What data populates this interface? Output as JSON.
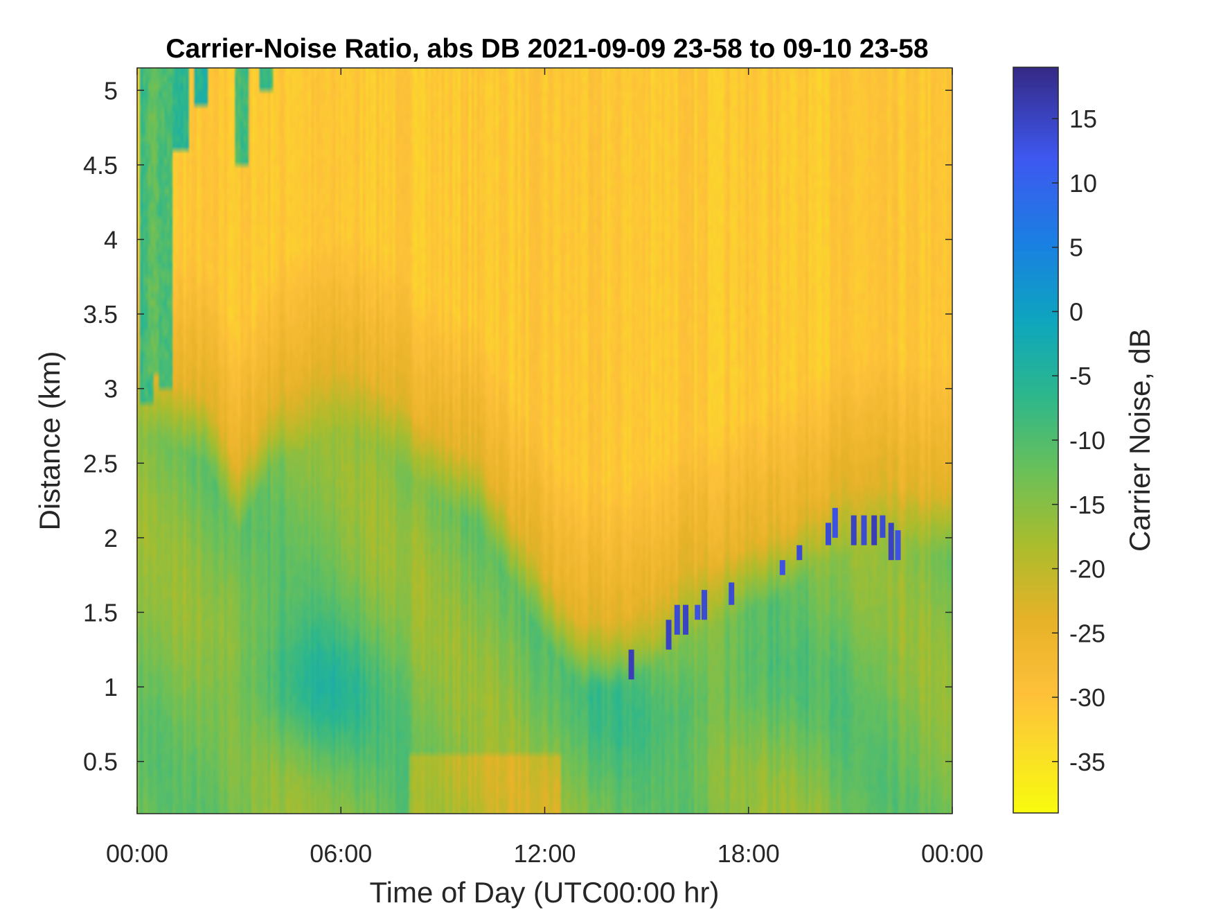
{
  "chart_data": {
    "type": "heatmap",
    "title": "Carrier-Noise Ratio, abs DB 2021-09-09 23-58 to 09-10 23-58",
    "xlabel": "Time of Day (UTC00:00 hr)",
    "ylabel": "Distance (km)",
    "xlim_hours": [
      0,
      24
    ],
    "ylim_km": [
      0.15,
      5.15
    ],
    "x_ticks": [
      {
        "value": 0,
        "label": "00:00"
      },
      {
        "value": 6,
        "label": "06:00"
      },
      {
        "value": 12,
        "label": "12:00"
      },
      {
        "value": 18,
        "label": "18:00"
      },
      {
        "value": 24,
        "label": "00:00"
      }
    ],
    "y_ticks": [
      {
        "value": 0.5,
        "label": "0.5"
      },
      {
        "value": 1,
        "label": "1"
      },
      {
        "value": 1.5,
        "label": "1.5"
      },
      {
        "value": 2,
        "label": "2"
      },
      {
        "value": 2.5,
        "label": "2.5"
      },
      {
        "value": 3,
        "label": "3"
      },
      {
        "value": 3.5,
        "label": "3.5"
      },
      {
        "value": 4,
        "label": "4"
      },
      {
        "value": 4.5,
        "label": "4.5"
      },
      {
        "value": 5,
        "label": "5"
      }
    ],
    "colorbar": {
      "label": "Carrier Noise, dB",
      "range": [
        -39,
        19
      ],
      "colormap": "parula-reversed",
      "ticks": [
        {
          "value": 15,
          "label": "15"
        },
        {
          "value": 10,
          "label": "10"
        },
        {
          "value": 5,
          "label": "5"
        },
        {
          "value": 0,
          "label": "0"
        },
        {
          "value": -5,
          "label": "-5"
        },
        {
          "value": -10,
          "label": "-10"
        },
        {
          "value": -15,
          "label": "-15"
        },
        {
          "value": -20,
          "label": "-20"
        },
        {
          "value": -25,
          "label": "-25"
        },
        {
          "value": -30,
          "label": "-30"
        },
        {
          "value": -35,
          "label": "-35"
        }
      ]
    },
    "background_value_db": -31,
    "boundary_layer_top_km": [
      [
        0,
        3.0
      ],
      [
        1,
        2.9
      ],
      [
        2,
        2.8
      ],
      [
        3,
        2.3
      ],
      [
        4,
        2.8
      ],
      [
        5,
        2.9
      ],
      [
        6,
        3.0
      ],
      [
        7,
        2.9
      ],
      [
        8,
        2.7
      ],
      [
        9,
        2.5
      ],
      [
        10,
        2.4
      ],
      [
        11,
        2.0
      ],
      [
        12,
        1.6
      ],
      [
        13,
        1.3
      ],
      [
        14,
        1.3
      ],
      [
        15,
        1.4
      ],
      [
        16,
        1.6
      ],
      [
        17,
        1.7
      ],
      [
        18,
        1.8
      ],
      [
        19,
        1.9
      ],
      [
        20,
        2.1
      ],
      [
        21,
        2.2
      ],
      [
        22,
        2.2
      ],
      [
        23,
        2.15
      ],
      [
        24,
        2.15
      ]
    ],
    "low_noise_cores": [
      {
        "x_hours": 5.0,
        "y_km": 0.95,
        "value_db": -7
      },
      {
        "x_hours": 15.0,
        "y_km": 0.9,
        "value_db": -10
      },
      {
        "x_hours": 18.0,
        "y_km": 0.95,
        "value_db": -11
      }
    ],
    "strong_returns": [
      {
        "x_hours": 14.55,
        "y_range_km": [
          1.05,
          1.25
        ],
        "value_db": 16
      },
      {
        "x_hours": 15.65,
        "y_range_km": [
          1.25,
          1.45
        ],
        "value_db": 15
      },
      {
        "x_hours": 15.9,
        "y_range_km": [
          1.35,
          1.55
        ],
        "value_db": 14
      },
      {
        "x_hours": 16.15,
        "y_range_km": [
          1.35,
          1.55
        ],
        "value_db": 15
      },
      {
        "x_hours": 16.5,
        "y_range_km": [
          1.45,
          1.55
        ],
        "value_db": 13
      },
      {
        "x_hours": 16.7,
        "y_range_km": [
          1.45,
          1.65
        ],
        "value_db": 14
      },
      {
        "x_hours": 17.5,
        "y_range_km": [
          1.55,
          1.7
        ],
        "value_db": 14
      },
      {
        "x_hours": 19.0,
        "y_range_km": [
          1.75,
          1.85
        ],
        "value_db": 13
      },
      {
        "x_hours": 19.5,
        "y_range_km": [
          1.85,
          1.95
        ],
        "value_db": 14
      },
      {
        "x_hours": 20.35,
        "y_range_km": [
          1.95,
          2.1
        ],
        "value_db": 14
      },
      {
        "x_hours": 20.55,
        "y_range_km": [
          2.0,
          2.2
        ],
        "value_db": 13
      },
      {
        "x_hours": 21.1,
        "y_range_km": [
          1.95,
          2.15
        ],
        "value_db": 15
      },
      {
        "x_hours": 21.4,
        "y_range_km": [
          1.95,
          2.15
        ],
        "value_db": 14
      },
      {
        "x_hours": 21.7,
        "y_range_km": [
          1.95,
          2.15
        ],
        "value_db": 16
      },
      {
        "x_hours": 21.95,
        "y_range_km": [
          2.0,
          2.15
        ],
        "value_db": 14
      },
      {
        "x_hours": 22.2,
        "y_range_km": [
          1.85,
          2.1
        ],
        "value_db": 15
      },
      {
        "x_hours": 22.4,
        "y_range_km": [
          1.85,
          2.05
        ],
        "value_db": 13
      }
    ],
    "early_streaks": [
      {
        "x_hours": 0.3,
        "y_range_km": [
          2.9,
          5.15
        ],
        "value_db": -8
      },
      {
        "x_hours": 0.55,
        "y_range_km": [
          3.1,
          5.15
        ],
        "value_db": -12
      },
      {
        "x_hours": 0.85,
        "y_range_km": [
          3.0,
          5.15
        ],
        "value_db": -10
      },
      {
        "x_hours": 1.3,
        "y_range_km": [
          4.6,
          5.15
        ],
        "value_db": -6
      },
      {
        "x_hours": 1.9,
        "y_range_km": [
          4.9,
          5.15
        ],
        "value_db": -5
      },
      {
        "x_hours": 3.1,
        "y_range_km": [
          4.5,
          5.15
        ],
        "value_db": -9
      },
      {
        "x_hours": 3.8,
        "y_range_km": [
          5.0,
          5.15
        ],
        "value_db": -7
      }
    ]
  }
}
